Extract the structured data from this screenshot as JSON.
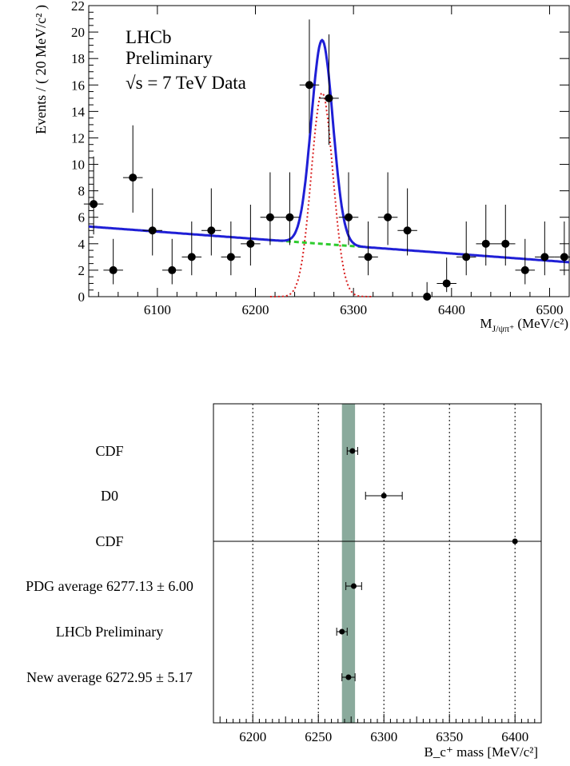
{
  "chart_data": [
    {
      "type": "scatter",
      "ylabel": "Events / ( 20 MeV/c² )",
      "xlabel_main": "M",
      "xlabel_sub": "J/ψπ⁺",
      "xlabel_unit": "(MeV/c²)",
      "annotations": [
        "LHCb",
        "Preliminary",
        "√s = 7 TeV Data"
      ],
      "xlim": [
        6030,
        6520
      ],
      "ylim": [
        0,
        22
      ],
      "xticks": [
        6100,
        6200,
        6300,
        6400,
        6500
      ],
      "yticks": [
        0,
        2,
        4,
        6,
        8,
        10,
        12,
        14,
        16,
        18,
        20,
        22
      ],
      "bin_width": 20,
      "data": {
        "x": [
          6035,
          6055,
          6075,
          6095,
          6115,
          6135,
          6155,
          6175,
          6195,
          6215,
          6235,
          6255,
          6275,
          6295,
          6315,
          6335,
          6355,
          6375,
          6395,
          6415,
          6435,
          6455,
          6475,
          6495,
          6515
        ],
        "y": [
          7,
          2,
          9,
          5,
          2,
          3,
          5,
          3,
          4,
          6,
          6,
          16,
          15,
          6,
          3,
          6,
          5,
          0,
          1,
          3,
          4,
          4,
          2,
          3,
          3
        ]
      },
      "fit_model": {
        "background": {
          "y_at_6030": 5.3,
          "y_at_6520": 2.6
        },
        "signal": {
          "mean": 6268,
          "sigma": 11,
          "peak": 15.4
        },
        "total_color": "#1f1fd6",
        "signal_color": "#d92020",
        "background_color": "#2ecc2e"
      }
    },
    {
      "type": "scatter",
      "xlabel": "B_c⁺ mass [MeV/c²]",
      "xlim": [
        6170,
        6420
      ],
      "xticks": [
        6200,
        6250,
        6300,
        6350,
        6400
      ],
      "grid": "vertical dotted",
      "band": {
        "low": 6268,
        "high": 6278,
        "color": "#8aaa9c"
      },
      "entries": [
        {
          "label": "CDF",
          "value": 6276,
          "err": 4
        },
        {
          "label": "D0",
          "value": 6300,
          "err": 14
        },
        {
          "label": "CDF",
          "value": 6400,
          "err": 0
        },
        {
          "label": "PDG average 6277.13 ± 6.00",
          "value": 6277,
          "err": 6
        },
        {
          "label": "LHCb Preliminary",
          "value": 6268,
          "err": 4
        },
        {
          "label": "New average 6272.95 ± 5.17",
          "value": 6273,
          "err": 5
        }
      ]
    }
  ]
}
